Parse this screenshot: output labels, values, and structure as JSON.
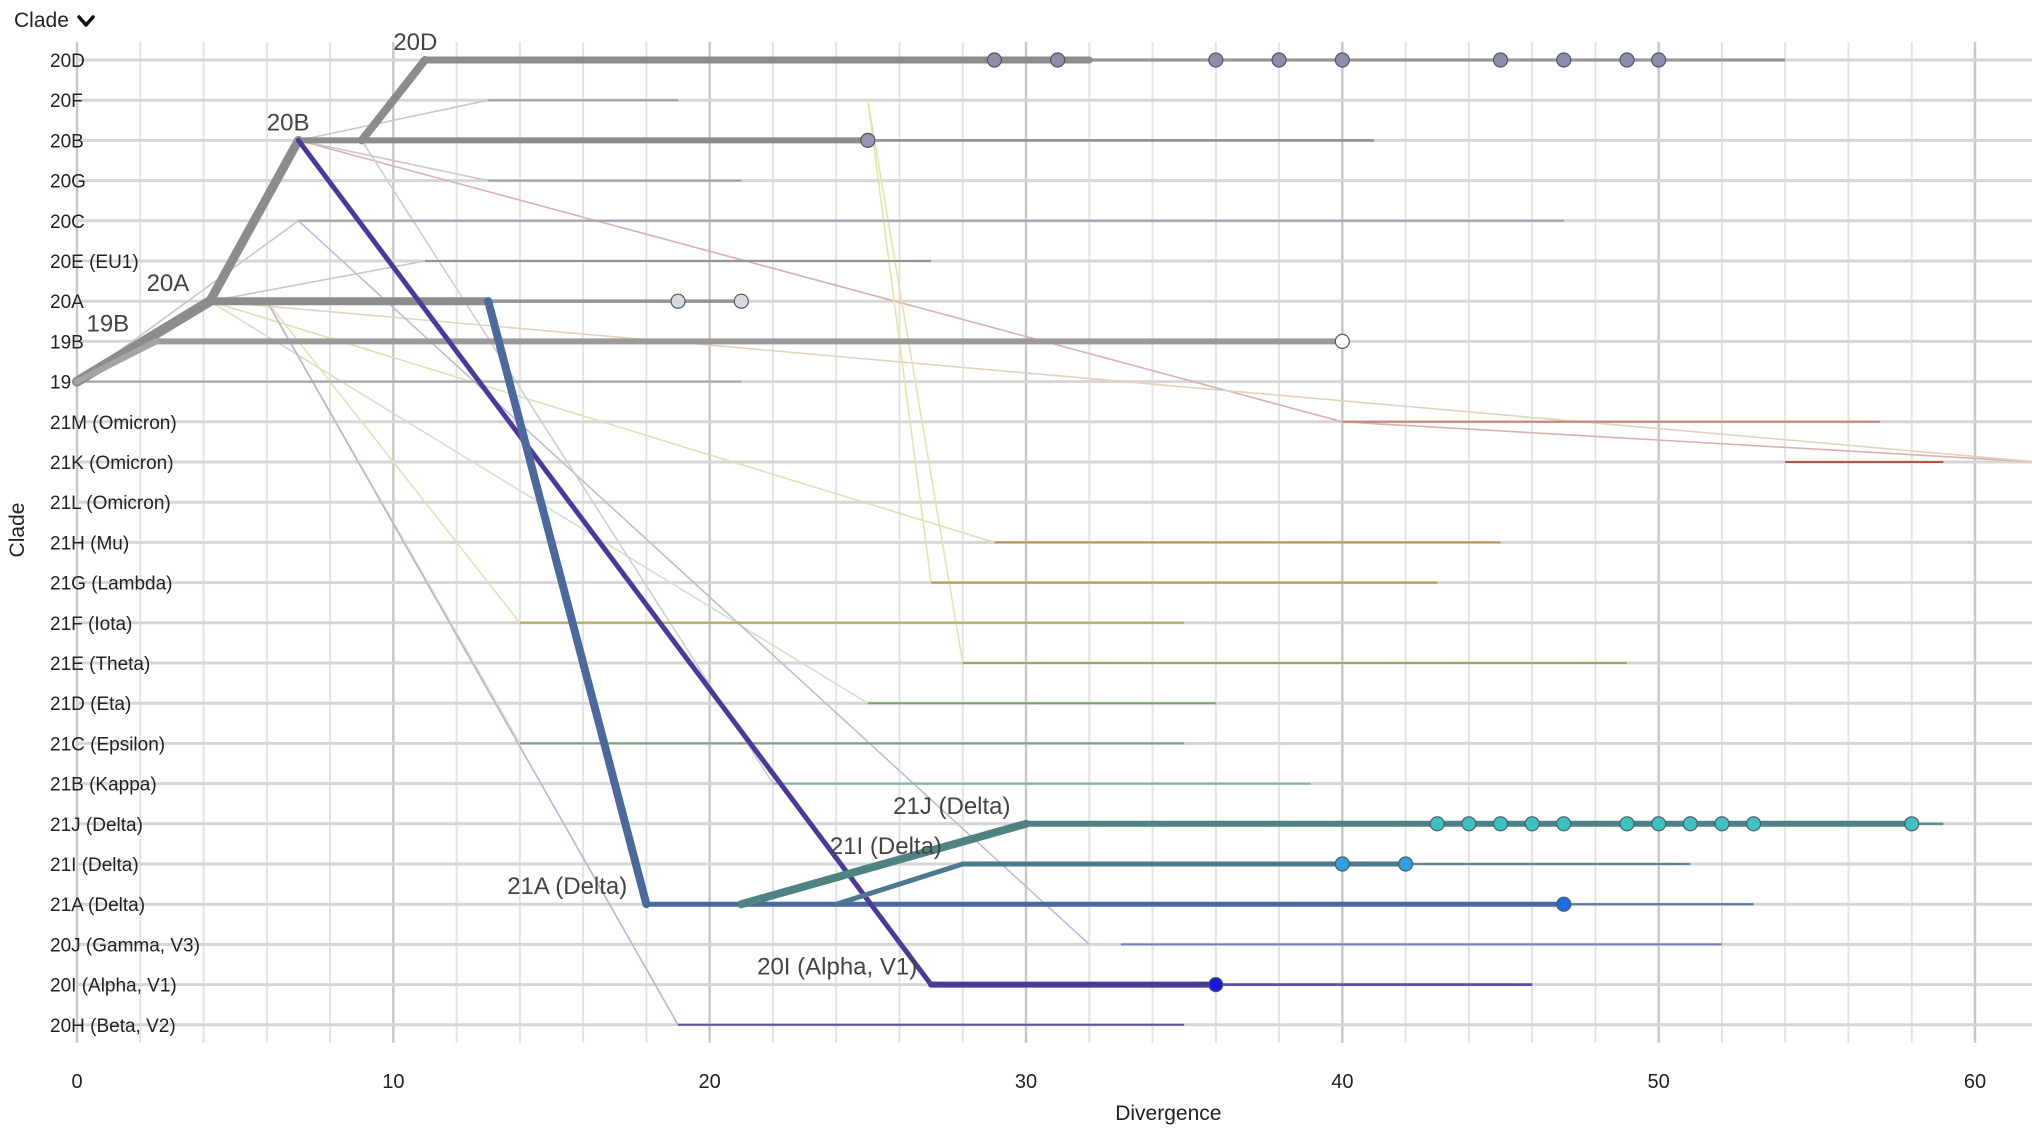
{
  "header": {
    "selector_label": "Clade",
    "selector_icon": "chevron-down-icon"
  },
  "chart_data": {
    "type": "line",
    "title": "",
    "xlabel": "Divergence",
    "ylabel": "Clade",
    "xlim": [
      0,
      62
    ],
    "x_ticks": [
      0,
      10,
      20,
      30,
      40,
      50,
      60
    ],
    "grid": true,
    "y_categories": [
      "20D",
      "20F",
      "20B",
      "20G",
      "20C",
      "20E (EU1)",
      "20A",
      "19B",
      "19A",
      "21M (Omicron)",
      "21K (Omicron)",
      "21L (Omicron)",
      "21H (Mu)",
      "21G (Lambda)",
      "21F (Iota)",
      "21E (Theta)",
      "21D (Eta)",
      "21C (Epsilon)",
      "21B (Kappa)",
      "21J (Delta)",
      "21I (Delta)",
      "21A (Delta)",
      "20J (Gamma, V3)",
      "20I (Alpha, V1)",
      "20H (Beta, V2)"
    ],
    "visible_y_tick_labels": [
      "20D",
      "20F",
      "20B",
      "20G",
      "20C",
      "20E (EU1)",
      "20A",
      "19B",
      "19",
      "21M (Omicron)",
      "21K (Omicron)",
      "21L (Omicron)",
      "21H (Mu)",
      "21G (Lambda)",
      "21F (Iota)",
      "21E (Theta)",
      "21D (Eta)",
      "21C (Epsilon)",
      "21B (Kappa)",
      "21J (Delta)",
      "21I (Delta)",
      "21A (Delta)",
      "20J (Gamma, V3)",
      "20I (Alpha, V1)",
      "20H (Beta, V2)"
    ],
    "node_labels": [
      {
        "text": "20D",
        "clade": "20D",
        "x": 10
      },
      {
        "text": "20B",
        "clade": "20B",
        "x": 6
      },
      {
        "text": "20A",
        "clade": "20A",
        "x": 2.2
      },
      {
        "text": "19B",
        "clade": "19B",
        "x": 0.3
      },
      {
        "text": "21J (Delta)",
        "clade": "21J (Delta)",
        "x": 25.8
      },
      {
        "text": "21I (Delta)",
        "clade": "21I (Delta)",
        "x": 23.8
      },
      {
        "text": "21A (Delta)",
        "clade": "21A (Delta)",
        "x": 13.6
      },
      {
        "text": "20I (Alpha, V1)",
        "clade": "20I (Alpha, V1)",
        "x": 21.5
      }
    ],
    "branches": [
      {
        "from": [
          "19A",
          0
        ],
        "to": [
          "20A",
          4.2
        ],
        "color": "#8c8c8c",
        "width": 10
      },
      {
        "from": [
          "19A",
          0
        ],
        "to": [
          "19B",
          2.5
        ],
        "color": "#a4a4a4",
        "width": 6
      },
      {
        "from": [
          "20A",
          4.2
        ],
        "to": [
          "20B",
          7
        ],
        "color": "#8c8c8c",
        "width": 9
      },
      {
        "from": [
          "20B",
          9
        ],
        "to": [
          "20D",
          11
        ],
        "color": "#8c8c8c",
        "width": 8
      },
      {
        "from": [
          "20B",
          7
        ],
        "to": [
          "20I (Alpha, V1)",
          27
        ],
        "color": "#4a3a9a",
        "width": 5
      },
      {
        "from": [
          "20A",
          13
        ],
        "to": [
          "21A (Delta)",
          18
        ],
        "color": "#4a6a9e",
        "width": 8
      },
      {
        "from": [
          "21A (Delta)",
          21
        ],
        "to": [
          "21J (Delta)",
          30
        ],
        "color": "#4f8282",
        "width": 8
      },
      {
        "from": [
          "21A (Delta)",
          24
        ],
        "to": [
          "21I (Delta)",
          28
        ],
        "color": "#4b7a8e",
        "width": 5
      }
    ],
    "connectors": [
      {
        "from": [
          "20B",
          7
        ],
        "to": [
          "21M (Omicron)",
          40
        ],
        "color": "#d8b2b2"
      },
      {
        "from": [
          "21M (Omicron)",
          40
        ],
        "to": [
          "21K (Omicron)",
          62
        ],
        "color": "#d8b2b2"
      },
      {
        "from": [
          "20A",
          4.2
        ],
        "to": [
          "21K (Omicron)",
          62
        ],
        "color": "#e2d3bf"
      },
      {
        "from": [
          "20F",
          25
        ],
        "to": [
          "21G (Lambda)",
          27
        ],
        "color": "#e3e6a8"
      },
      {
        "from": [
          "20F",
          25
        ],
        "to": [
          "21E (Theta)",
          28
        ],
        "color": "#e3e6a8"
      },
      {
        "from": [
          "20A",
          4.2
        ],
        "to": [
          "21H (Mu)",
          29
        ],
        "color": "#e4dcb8"
      },
      {
        "from": [
          "20A",
          4.2
        ],
        "to": [
          "21D (Eta)",
          25
        ],
        "color": "#d5dfc8"
      },
      {
        "from": [
          "20A",
          6
        ],
        "to": [
          "21F (Iota)",
          14
        ],
        "color": "#e2e2b6"
      },
      {
        "from": [
          "20A",
          6
        ],
        "to": [
          "21C (Epsilon)",
          14
        ],
        "color": "#d5dfc8"
      },
      {
        "from": [
          "20C",
          7
        ],
        "to": [
          "20J (Gamma, V3)",
          32
        ],
        "color": "#b9bfd6"
      },
      {
        "from": [
          "20A",
          6
        ],
        "to": [
          "20H (Beta, V2)",
          19
        ],
        "color": "#b0b8d6"
      },
      {
        "from": [
          "20B",
          9
        ],
        "to": [
          "21B (Kappa)",
          22
        ],
        "color": "#c8cfdb"
      },
      {
        "from": [
          "20B",
          7
        ],
        "to": [
          "20F",
          13
        ],
        "color": "#c8c8c8"
      },
      {
        "from": [
          "20B",
          7
        ],
        "to": [
          "20G",
          13
        ],
        "color": "#c8c8c8"
      },
      {
        "from": [
          "20A",
          4.2
        ],
        "to": [
          "20E (EU1)",
          11
        ],
        "color": "#c8c8c8"
      },
      {
        "from": [
          "19A",
          0
        ],
        "to": [
          "20C",
          7
        ],
        "color": "#c8c8c8"
      }
    ],
    "series": [
      {
        "name": "20D",
        "x0": 11,
        "x1": 32,
        "tail": 54,
        "color": "#8c8c8c",
        "width": 7,
        "points": [
          29,
          31,
          36,
          38,
          40,
          45,
          47,
          49,
          50
        ],
        "point_color": "#8d8da8"
      },
      {
        "name": "20F",
        "x0": 13,
        "x1": 13,
        "tail": 19,
        "color": "#9a9a9a",
        "width": 3,
        "points": []
      },
      {
        "name": "20B",
        "x0": 7,
        "x1": 25,
        "tail": 41,
        "color": "#8c8c8c",
        "width": 6,
        "points": [
          25
        ],
        "point_color": "#9595ad"
      },
      {
        "name": "20G",
        "x0": 13,
        "x1": 13,
        "tail": 21,
        "color": "#9a9a9a",
        "width": 3,
        "points": []
      },
      {
        "name": "20C",
        "x0": 7,
        "x1": 7,
        "tail": 47,
        "color": "#9a9aa8",
        "width": 3,
        "points": []
      },
      {
        "name": "20E (EU1)",
        "x0": 11,
        "x1": 11,
        "tail": 27,
        "color": "#8a8a96",
        "width": 3,
        "points": []
      },
      {
        "name": "20A",
        "x0": 4.2,
        "x1": 13,
        "tail": 21,
        "color": "#8c8c8c",
        "width": 8,
        "points": [
          19,
          21
        ],
        "point_color": "#d6dadc"
      },
      {
        "name": "19B",
        "x0": 2.5,
        "x1": 40,
        "tail": 40,
        "color": "#9a9a9a",
        "width": 6,
        "points": [
          40
        ],
        "point_color": "#ffffff"
      },
      {
        "name": "19A",
        "x0": 0,
        "x1": 0,
        "tail": 21,
        "color": "#a0a0a0",
        "width": 3,
        "points": []
      },
      {
        "name": "21M (Omicron)",
        "x0": 40,
        "x1": 40,
        "tail": 57,
        "color": "#c47a70",
        "width": 3,
        "points": []
      },
      {
        "name": "21K (Omicron)",
        "x0": 54,
        "x1": 54,
        "tail": 59,
        "color": "#a4432e",
        "width": 3,
        "points": []
      },
      {
        "name": "21H (Mu)",
        "x0": 29,
        "x1": 29,
        "tail": 45,
        "color": "#b78c3c",
        "width": 3,
        "points": []
      },
      {
        "name": "21G (Lambda)",
        "x0": 27,
        "x1": 27,
        "tail": 43,
        "color": "#b7902e",
        "width": 3,
        "points": []
      },
      {
        "name": "21F (Iota)",
        "x0": 14,
        "x1": 14,
        "tail": 35,
        "color": "#b0a44a",
        "width": 3,
        "points": []
      },
      {
        "name": "21E (Theta)",
        "x0": 28,
        "x1": 28,
        "tail": 49,
        "color": "#8fa448",
        "width": 3,
        "points": []
      },
      {
        "name": "21D (Eta)",
        "x0": 25,
        "x1": 25,
        "tail": 36,
        "color": "#6f9a55",
        "width": 3,
        "points": []
      },
      {
        "name": "21C (Epsilon)",
        "x0": 14,
        "x1": 14,
        "tail": 35,
        "color": "#6c9a72",
        "width": 3,
        "points": []
      },
      {
        "name": "21B (Kappa)",
        "x0": 22,
        "x1": 22,
        "tail": 39,
        "color": "#7fa8a8",
        "width": 3,
        "points": []
      },
      {
        "name": "21J (Delta)",
        "x0": 30,
        "x1": 58,
        "tail": 59,
        "color": "#4f8282",
        "width": 6,
        "points": [
          43,
          44,
          45,
          46,
          47,
          49,
          50,
          51,
          52,
          53,
          58
        ],
        "point_color": "#3ec1c1"
      },
      {
        "name": "21I (Delta)",
        "x0": 28,
        "x1": 42,
        "tail": 51,
        "color": "#4b7a8e",
        "width": 5,
        "points": [
          40,
          42
        ],
        "point_color": "#2f9fe0"
      },
      {
        "name": "21A (Delta)",
        "x0": 18,
        "x1": 47,
        "tail": 53,
        "color": "#4a6a9e",
        "width": 5,
        "points": [
          47
        ],
        "point_color": "#1f6de0"
      },
      {
        "name": "20J (Gamma, V3)",
        "x0": 33,
        "x1": 33,
        "tail": 52,
        "color": "#6a72b8",
        "width": 3,
        "points": []
      },
      {
        "name": "20I (Alpha, V1)",
        "x0": 27,
        "x1": 36,
        "tail": 46,
        "color": "#4a3a9a",
        "width": 6,
        "points": [
          36
        ],
        "point_color": "#1a18d8"
      },
      {
        "name": "20H (Beta, V2)",
        "x0": 19,
        "x1": 19,
        "tail": 35,
        "color": "#4f3a9a",
        "width": 3,
        "points": []
      }
    ],
    "colors": {
      "grid": "#d9d9d9",
      "axis_text": "#222222",
      "node_label": "#444444"
    }
  }
}
